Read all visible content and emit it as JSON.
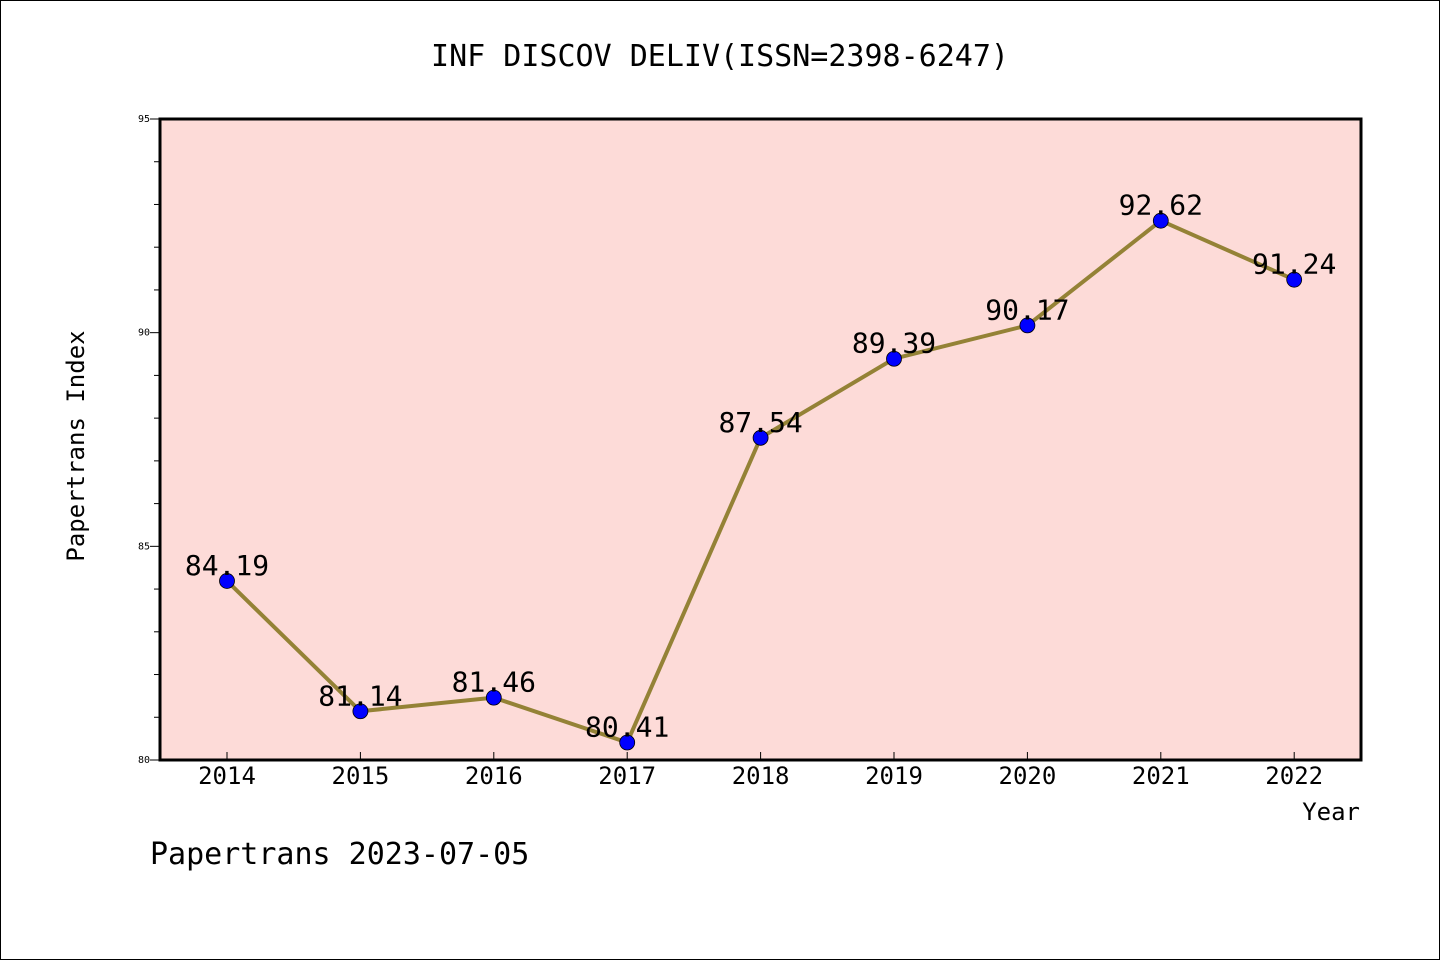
{
  "chart_data": {
    "type": "line",
    "title": "INF DISCOV DELIV(ISSN=2398-6247)",
    "xlabel": "Year",
    "ylabel": "Papertrans Index",
    "footer": "Papertrans 2023-07-05",
    "x": [
      "2014",
      "2015",
      "2016",
      "2017",
      "2018",
      "2019",
      "2020",
      "2021",
      "2022"
    ],
    "series": [
      {
        "values": [
          84.19,
          81.14,
          81.46,
          80.41,
          87.54,
          89.39,
          90.17,
          92.62,
          91.24
        ],
        "labels": [
          "84.19",
          "81.14",
          "81.46",
          "80.41",
          "87.54",
          "89.39",
          "90.17",
          "92.62",
          "91.24"
        ]
      }
    ],
    "ylim": [
      80,
      95
    ],
    "yticks": [
      "80",
      "85",
      "90",
      "95"
    ],
    "grid": false,
    "colors": {
      "plot_background": "#fddbd8",
      "line": "#948236",
      "marker": "#0000ff"
    }
  }
}
